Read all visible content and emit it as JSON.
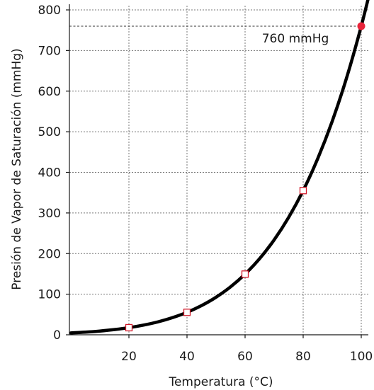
{
  "chart_data": {
    "type": "line",
    "xlabel": "Temperatura (°C)",
    "ylabel": "Presión de Vapor de Saturación (mmHg)",
    "xlim": [
      0,
      105
    ],
    "ylim": [
      0,
      815
    ],
    "x_ticks": [
      20,
      40,
      60,
      80,
      100
    ],
    "y_ticks": [
      0,
      100,
      200,
      300,
      400,
      500,
      600,
      700,
      800
    ],
    "grid": true,
    "series": [
      {
        "values_x": [
          0,
          5,
          10,
          15,
          20,
          25,
          30,
          35,
          40,
          45,
          50,
          55,
          60,
          65,
          70,
          75,
          80,
          85,
          90,
          95,
          100,
          104
        ],
        "values_y": [
          4.6,
          6.5,
          9.2,
          12.8,
          17.5,
          23.8,
          31.8,
          42.2,
          55.3,
          71.9,
          92.5,
          118.0,
          149.4,
          187.5,
          233.7,
          289.1,
          355.1,
          433.6,
          525.8,
          633.9,
          760.0,
          875.0
        ],
        "color": "#000000"
      }
    ],
    "markers": [
      {
        "x": 20,
        "y": 17.5,
        "shape": "square-open",
        "color": "#d11a2a"
      },
      {
        "x": 40,
        "y": 55.3,
        "shape": "square-open",
        "color": "#d11a2a"
      },
      {
        "x": 60,
        "y": 149.4,
        "shape": "square-open",
        "color": "#d11a2a"
      },
      {
        "x": 80,
        "y": 355.1,
        "shape": "square-open",
        "color": "#d11a2a"
      },
      {
        "x": 100,
        "y": 760,
        "shape": "circle-filled",
        "color": "#e8243a"
      }
    ],
    "reference_line": {
      "y": 760,
      "label": "760 mmHg"
    }
  }
}
